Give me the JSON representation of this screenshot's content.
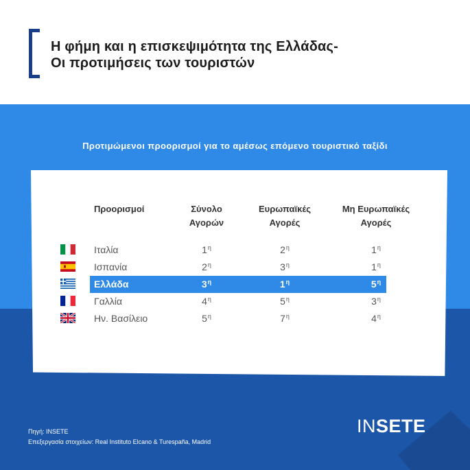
{
  "title": {
    "line1": "Η φήμη και η επισκεψιμότητα της Ελλάδας-",
    "line2": "Οι προτιμήσεις των τουριστών"
  },
  "chart_data": {
    "type": "table",
    "title": "Προτιμώμενοι προορισμοί για το αμέσως επόμενο τουριστικό ταξίδι",
    "columns": [
      "Προορισμοί",
      "Σύνολο\nΑγορών",
      "Ευρωπαϊκές\nΑγορές",
      "Μη Ευρωπαϊκές\nΑγορές"
    ],
    "rank_suffix": "η",
    "rows": [
      {
        "flag": "italy-flag",
        "destination": "Ιταλία",
        "values": [
          "1",
          "2",
          "1"
        ],
        "highlight": false
      },
      {
        "flag": "spain-flag",
        "destination": "Ισπανία",
        "values": [
          "2",
          "3",
          "1"
        ],
        "highlight": false
      },
      {
        "flag": "greece-flag",
        "destination": "Ελλάδα",
        "values": [
          "3",
          "1",
          "5"
        ],
        "highlight": true
      },
      {
        "flag": "france-flag",
        "destination": "Γαλλία",
        "values": [
          "4",
          "5",
          "3"
        ],
        "highlight": false
      },
      {
        "flag": "uk-flag",
        "destination": "Ην. Βασίλειο",
        "values": [
          "5",
          "7",
          "4"
        ],
        "highlight": false
      }
    ]
  },
  "source": {
    "line1": "Πηγή: INSETE",
    "line2": "Επεξεργασία στοιχείων: Real Instituto Elcano & Turespaña, Madrid"
  },
  "logo": {
    "part1": "IN",
    "part2": "SETE"
  },
  "colors": {
    "band": "#2e8ae6",
    "bottom": "#1c56a8",
    "highlight": "#2e8ae6",
    "bracket": "#1a3f8a"
  }
}
